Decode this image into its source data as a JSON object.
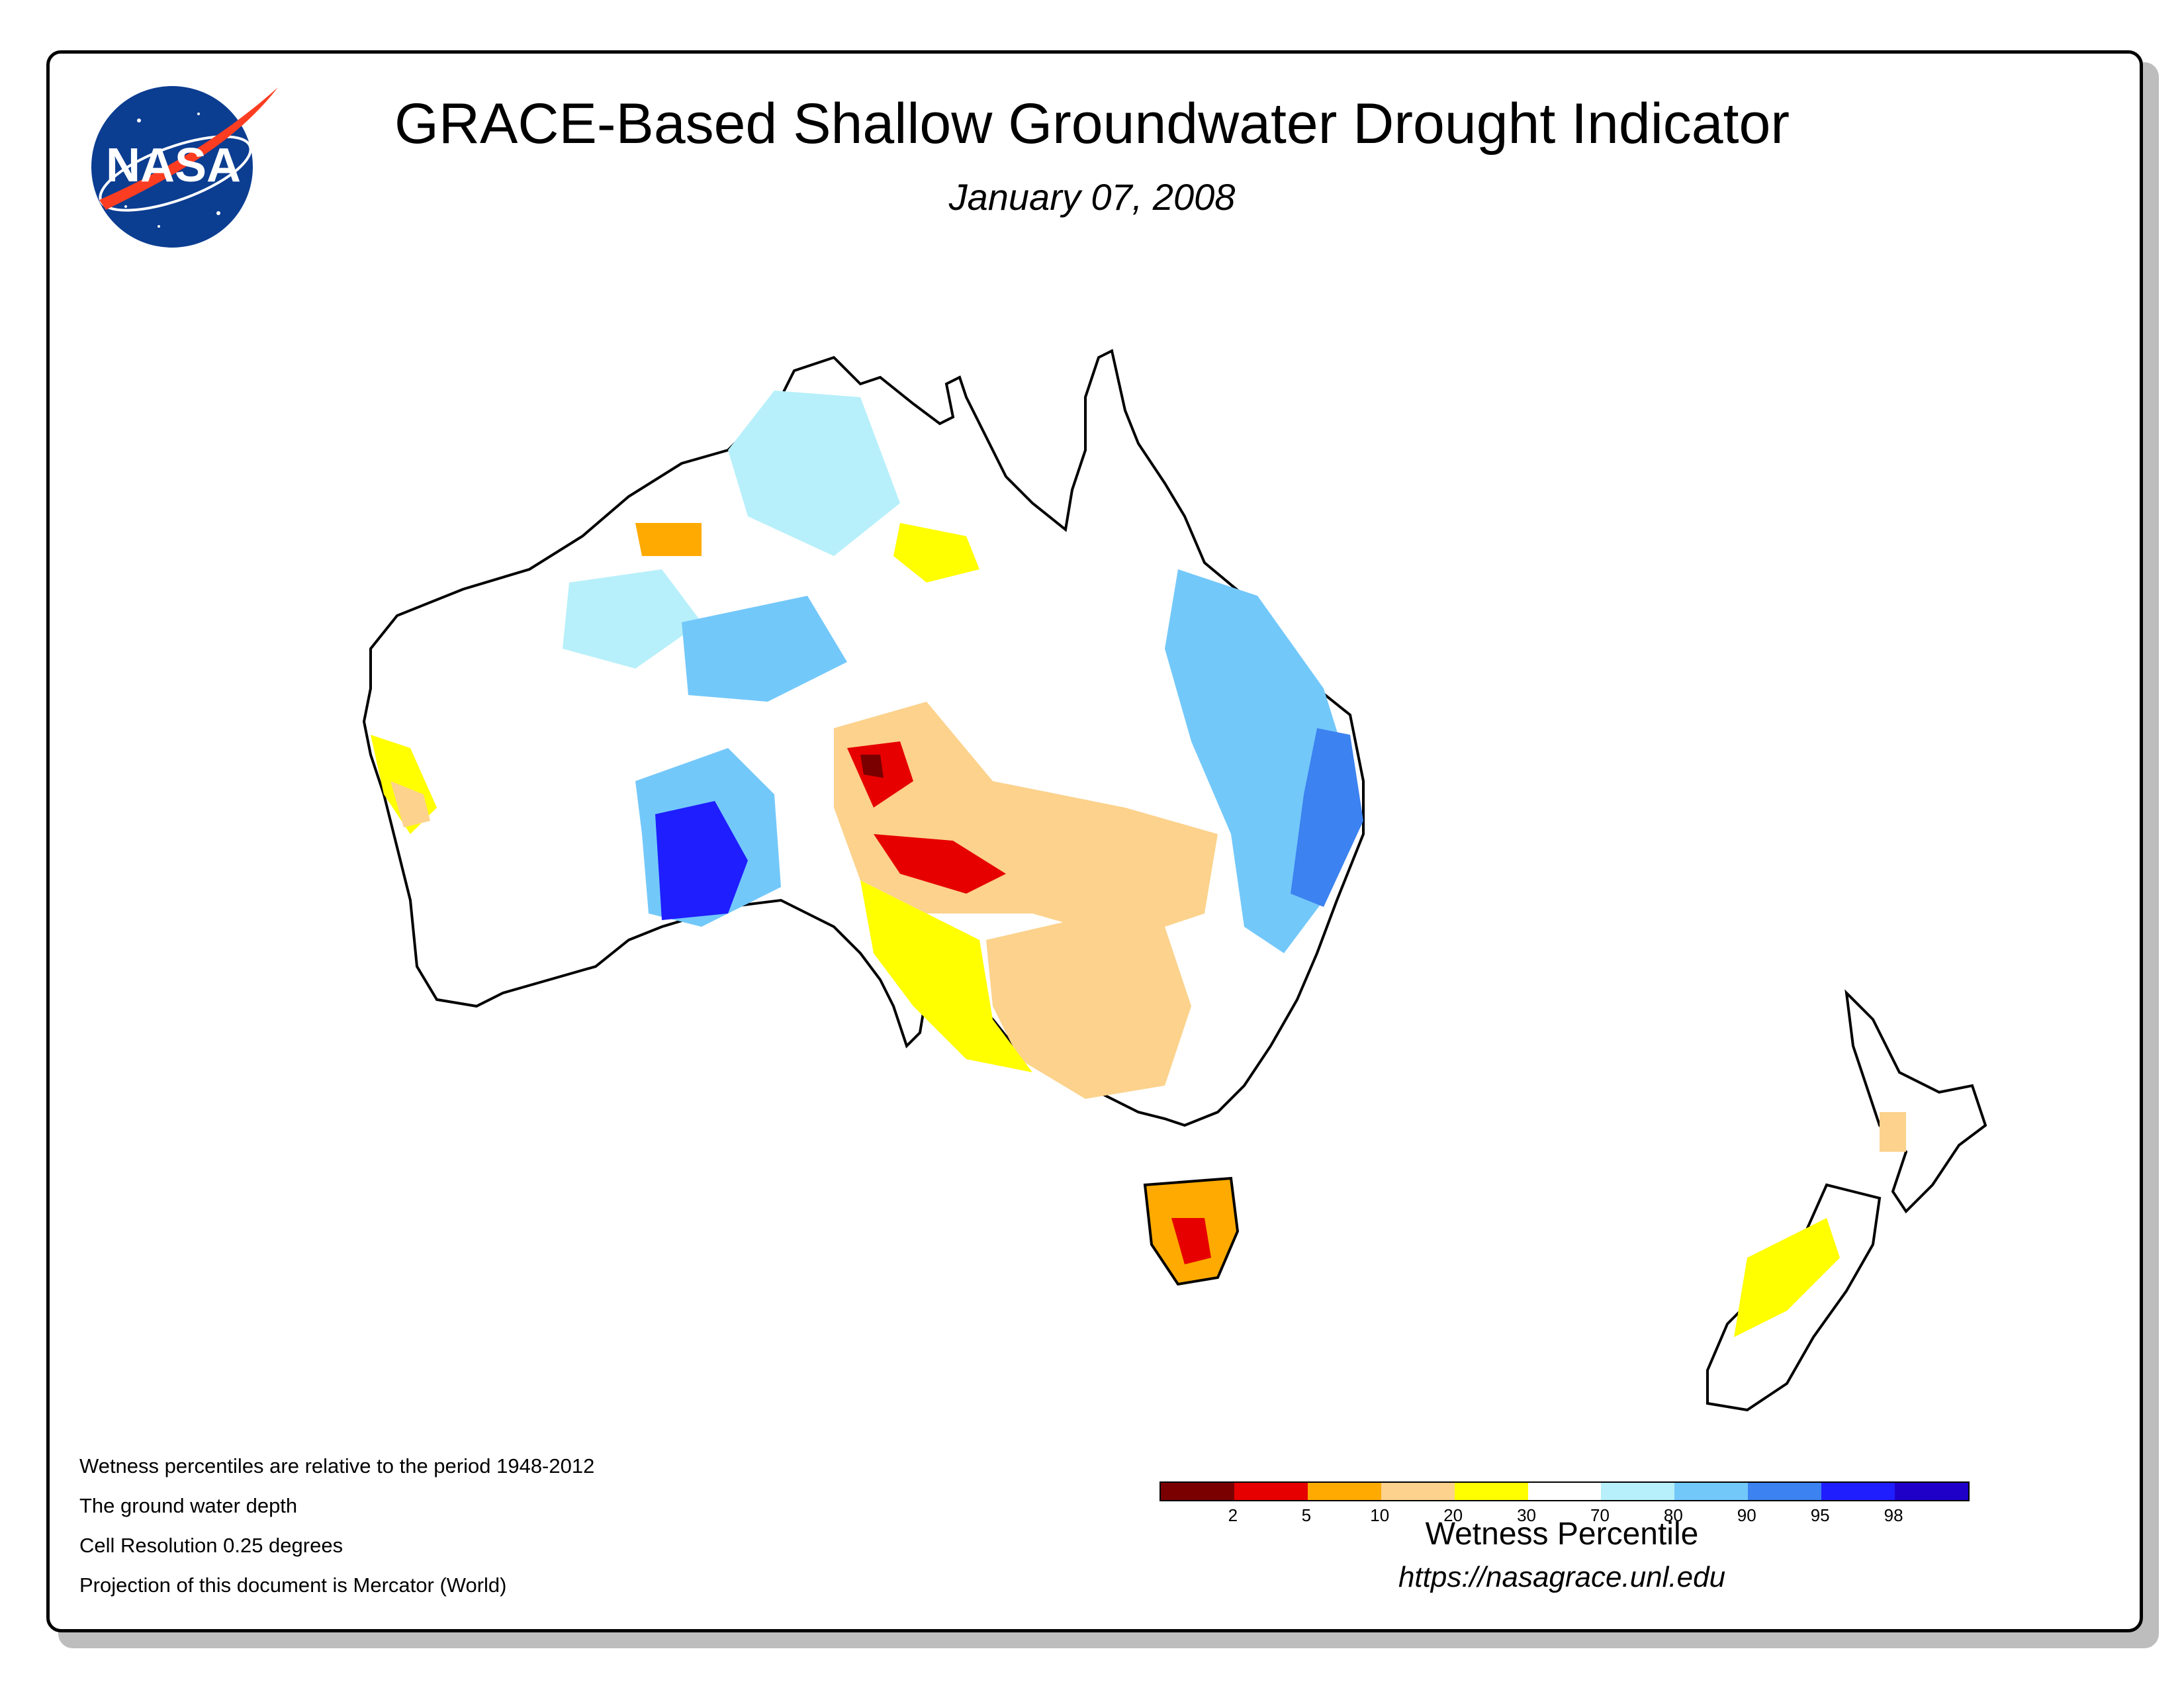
{
  "header": {
    "title": "GRACE-Based Shallow Groundwater Drought Indicator",
    "date": "January 07, 2008",
    "logo_text": "NASA"
  },
  "notes": [
    "Wetness percentiles are relative to the period 1948-2012",
    "The ground water depth",
    "Cell Resolution 0.25 degrees",
    "Projection of this document is Mercator (World)"
  ],
  "legend": {
    "title": "Wetness Percentile",
    "tick_labels": [
      "2",
      "5",
      "10",
      "20",
      "30",
      "70",
      "80",
      "90",
      "95",
      "98"
    ],
    "colors": [
      "#7a0000",
      "#e60000",
      "#ffaa00",
      "#fcd28c",
      "#ffff00",
      "#ffffff",
      "#b7f0fa",
      "#73c8fa",
      "#3c82f0",
      "#1e1eff",
      "#1e00c8"
    ]
  },
  "source_url": "https://nasagrace.unl.edu",
  "colors": {
    "nasa_blue": "#0b3d91",
    "nasa_red": "#fc3d21"
  }
}
